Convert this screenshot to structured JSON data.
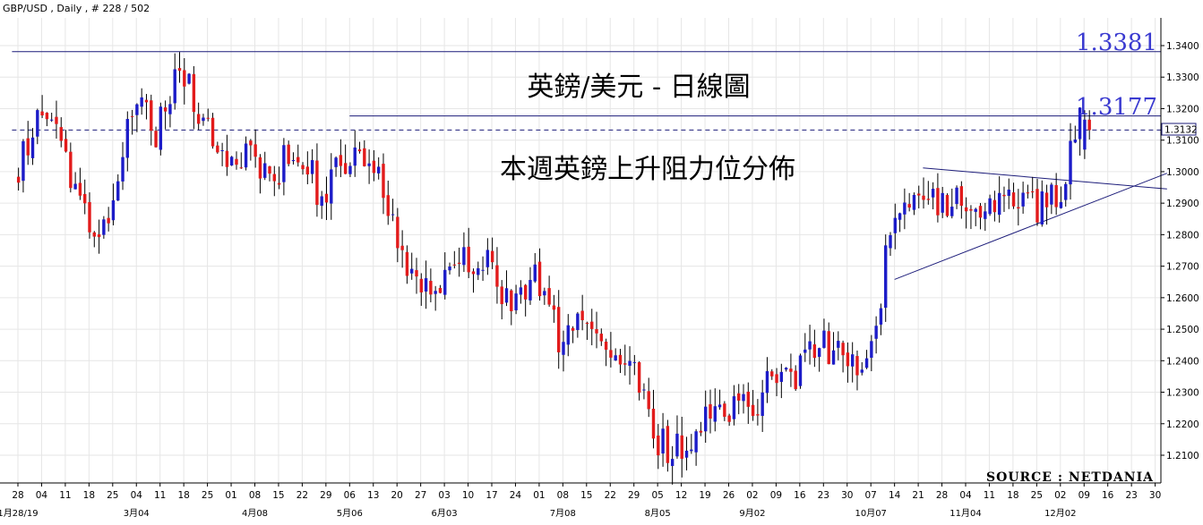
{
  "header": {
    "label": "GBP/USD , Daily , # 228 / 502"
  },
  "annotations": {
    "title": "英鎊/美元 - 日線圖",
    "subtitle": "本週英鎊上升阻力位分佈",
    "level_high": "1.3381",
    "level_mid": "1.3177",
    "source": "SOURCE : NETDANIA"
  },
  "colors": {
    "up": "#1c1cc8",
    "down": "#e21b1b",
    "wick": "#000000",
    "level_line": "#1c1c7a",
    "dashed_line": "#1c1c7a",
    "grid": "#e6e6e6",
    "current_box_text": "#000000"
  },
  "chart_data": {
    "type": "candlestick",
    "symbol": "GBP/USD",
    "timeframe": "Daily",
    "ylim": [
      1.204,
      1.3475
    ],
    "y_ticks": [
      "1.2100",
      "1.2200",
      "1.2300",
      "1.2400",
      "1.2500",
      "1.2600",
      "1.2700",
      "1.2800",
      "1.2900",
      "1.3000",
      "1.3100",
      "1.3200",
      "1.3300",
      "1.3400"
    ],
    "current_price": "1.3132",
    "x_tick_labels": [
      "28",
      "04",
      "11",
      "18",
      "25",
      "04",
      "11",
      "18",
      "25",
      "01",
      "08",
      "15",
      "22",
      "29",
      "06",
      "13",
      "20",
      "27",
      "03",
      "10",
      "17",
      "24",
      "01",
      "08",
      "15",
      "22",
      "29",
      "05",
      "12",
      "19",
      "26",
      "02",
      "09",
      "16",
      "23",
      "30",
      "07",
      "14",
      "21",
      "28",
      "04",
      "11",
      "18",
      "25",
      "02",
      "09",
      "16",
      "23",
      "30"
    ],
    "x_month_labels": [
      {
        "label": "1月28/19",
        "at_tick": 0
      },
      {
        "label": "3月04",
        "at_tick": 5
      },
      {
        "label": "4月08",
        "at_tick": 10
      },
      {
        "label": "5月06",
        "at_tick": 14
      },
      {
        "label": "6月03",
        "at_tick": 18
      },
      {
        "label": "7月08",
        "at_tick": 23
      },
      {
        "label": "8月05",
        "at_tick": 27
      },
      {
        "label": "9月02",
        "at_tick": 31
      },
      {
        "label": "10月07",
        "at_tick": 36
      },
      {
        "label": "11月04",
        "at_tick": 40
      },
      {
        "label": "12月02",
        "at_tick": 44
      }
    ],
    "horizontal_levels": [
      {
        "value": 1.3381,
        "style": "solid",
        "from_tick": -0.25,
        "to_tick": 48.5
      },
      {
        "value": 1.3177,
        "style": "solid",
        "from_tick": 14.0,
        "to_tick": 48.5
      },
      {
        "value": 1.3132,
        "style": "dashed",
        "from_tick": -0.25,
        "to_tick": 48.5
      }
    ],
    "trendlines": [
      {
        "name": "upper",
        "from": {
          "tick": 38.2,
          "price": 1.3012
        },
        "to": {
          "tick": 48.5,
          "price": 1.2945
        }
      },
      {
        "name": "lower",
        "from": {
          "tick": 37.0,
          "price": 1.2658
        },
        "to": {
          "tick": 48.5,
          "price": 1.2995
        }
      }
    ],
    "weekly_guide": [
      1.298,
      1.316,
      1.308,
      1.285,
      1.282,
      1.323,
      1.312,
      1.331,
      1.317,
      1.307,
      1.303,
      1.3,
      1.308,
      1.292,
      1.303,
      1.306,
      1.283,
      1.261,
      1.263,
      1.271,
      1.271,
      1.256,
      1.27,
      1.248,
      1.251,
      1.244,
      1.244,
      1.214,
      1.212,
      1.218,
      1.226,
      1.226,
      1.232,
      1.236,
      1.247,
      1.241,
      1.235,
      1.281,
      1.289,
      1.289,
      1.291,
      1.289,
      1.293,
      1.288,
      1.291,
      1.316
    ]
  }
}
